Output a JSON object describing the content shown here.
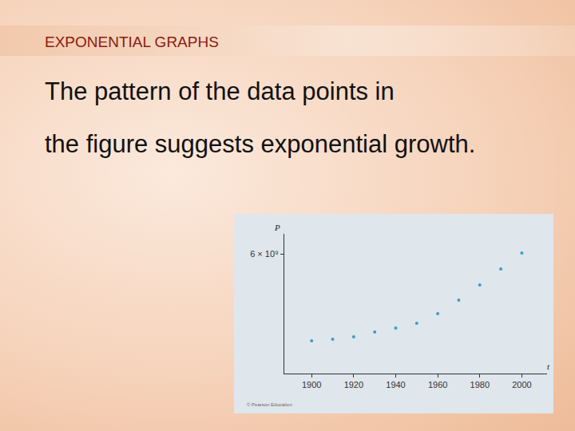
{
  "slide": {
    "heading": "EXPONENTIAL GRAPHS",
    "body": [
      "The pattern of the data points in",
      "the figure suggests exponential growth."
    ],
    "credit": "© Pearson Education"
  },
  "chart_data": {
    "type": "scatter",
    "x": [
      1900,
      1910,
      1920,
      1930,
      1940,
      1950,
      1960,
      1970,
      1980,
      1990,
      2000
    ],
    "values": [
      1640000000,
      1720000000,
      1840000000,
      2080000000,
      2280000000,
      2520000000,
      3000000000,
      3680000000,
      4440000000,
      5240000000,
      6040000000
    ],
    "color": "#3a9fc4",
    "marker": "circle",
    "xlabel": "t",
    "ylabel": "P",
    "xlim": [
      1887,
      2012
    ],
    "ylim": [
      0,
      7000000000
    ],
    "xticks": [
      1900,
      1920,
      1940,
      1960,
      1980,
      2000
    ],
    "yticks": [
      {
        "value": 6000000000,
        "label": "6 × 10⁹"
      }
    ],
    "grid": false
  }
}
